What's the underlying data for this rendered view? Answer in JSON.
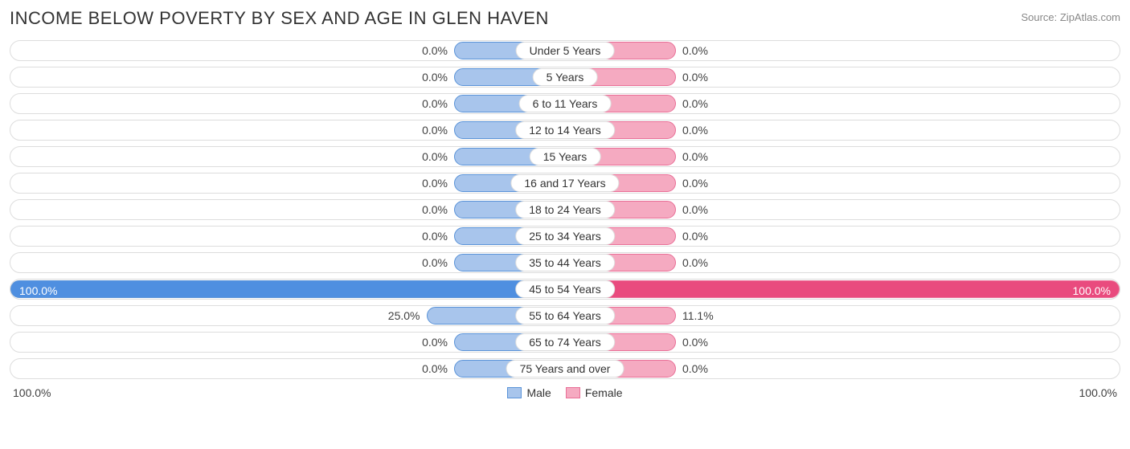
{
  "title": "INCOME BELOW POVERTY BY SEX AND AGE IN GLEN HAVEN",
  "source": "Source: ZipAtlas.com",
  "axis": {
    "left": "100.0%",
    "right": "100.0%",
    "max_pct": 100.0
  },
  "legend": {
    "male": "Male",
    "female": "Female"
  },
  "colors": {
    "male_fill": "#a8c5ec",
    "male_border": "#5a93d8",
    "male_full": "#4f8fe0",
    "female_fill": "#f5aac1",
    "female_border": "#e96f97",
    "female_full": "#e94b7e",
    "track_border": "#dddddd",
    "text": "#404040",
    "title_text": "#333333",
    "source_text": "#888888",
    "bg": "#ffffff"
  },
  "min_bar_pct": 20.0,
  "rows": [
    {
      "label": "Under 5 Years",
      "male": 0.0,
      "male_txt": "0.0%",
      "female": 0.0,
      "female_txt": "0.0%"
    },
    {
      "label": "5 Years",
      "male": 0.0,
      "male_txt": "0.0%",
      "female": 0.0,
      "female_txt": "0.0%"
    },
    {
      "label": "6 to 11 Years",
      "male": 0.0,
      "male_txt": "0.0%",
      "female": 0.0,
      "female_txt": "0.0%"
    },
    {
      "label": "12 to 14 Years",
      "male": 0.0,
      "male_txt": "0.0%",
      "female": 0.0,
      "female_txt": "0.0%"
    },
    {
      "label": "15 Years",
      "male": 0.0,
      "male_txt": "0.0%",
      "female": 0.0,
      "female_txt": "0.0%"
    },
    {
      "label": "16 and 17 Years",
      "male": 0.0,
      "male_txt": "0.0%",
      "female": 0.0,
      "female_txt": "0.0%"
    },
    {
      "label": "18 to 24 Years",
      "male": 0.0,
      "male_txt": "0.0%",
      "female": 0.0,
      "female_txt": "0.0%"
    },
    {
      "label": "25 to 34 Years",
      "male": 0.0,
      "male_txt": "0.0%",
      "female": 0.0,
      "female_txt": "0.0%"
    },
    {
      "label": "35 to 44 Years",
      "male": 0.0,
      "male_txt": "0.0%",
      "female": 0.0,
      "female_txt": "0.0%"
    },
    {
      "label": "45 to 54 Years",
      "male": 100.0,
      "male_txt": "100.0%",
      "female": 100.0,
      "female_txt": "100.0%"
    },
    {
      "label": "55 to 64 Years",
      "male": 25.0,
      "male_txt": "25.0%",
      "female": 11.1,
      "female_txt": "11.1%"
    },
    {
      "label": "65 to 74 Years",
      "male": 0.0,
      "male_txt": "0.0%",
      "female": 0.0,
      "female_txt": "0.0%"
    },
    {
      "label": "75 Years and over",
      "male": 0.0,
      "male_txt": "0.0%",
      "female": 0.0,
      "female_txt": "0.0%"
    }
  ]
}
